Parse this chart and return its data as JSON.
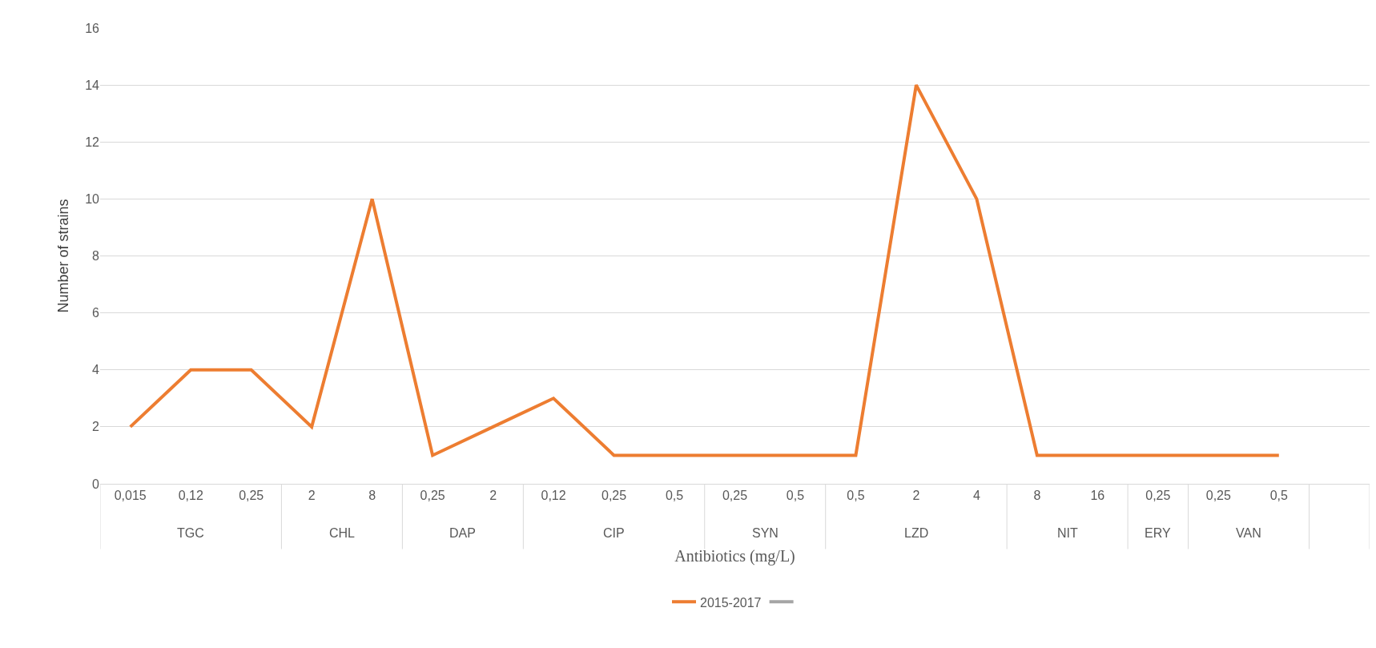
{
  "chart_data": {
    "type": "line",
    "xlabel": "Antibiotics (mg/L)",
    "ylabel": "Number of strains",
    "categories": [
      "0,015",
      "0,12",
      "0,25",
      "2",
      "8",
      "0,25",
      "2",
      "0,12",
      "0,25",
      "0,5",
      "0,25",
      "0,5",
      "0,5",
      "2",
      "4",
      "8",
      "16",
      "0,25",
      "0,25",
      "0,5",
      null
    ],
    "annotations": [
      "TGC",
      "CHL",
      "DAP",
      "CIP",
      "SYN",
      "LZD",
      "NIT",
      "ERY",
      "VAN"
    ],
    "series": [
      {
        "name": "2015-2017",
        "color": "#ed7d31",
        "values": [
          2,
          4,
          4,
          2,
          10,
          1,
          2,
          3,
          1,
          1,
          1,
          1,
          1,
          14,
          10,
          1,
          1,
          1,
          1,
          1,
          null
        ]
      },
      {
        "color": "#a5a5a5",
        "values": [
          null,
          null,
          null,
          null,
          null,
          null,
          null,
          null,
          null,
          null,
          null,
          null,
          null,
          null,
          null,
          null,
          null,
          null,
          null,
          null,
          null
        ]
      }
    ],
    "ylim": [
      0,
      16
    ],
    "yticks": [
      0,
      2,
      4,
      6,
      8,
      10,
      12,
      14,
      16
    ],
    "grid": "y",
    "legend": "bottom",
    "marker": "none",
    "line_style": "solid"
  }
}
